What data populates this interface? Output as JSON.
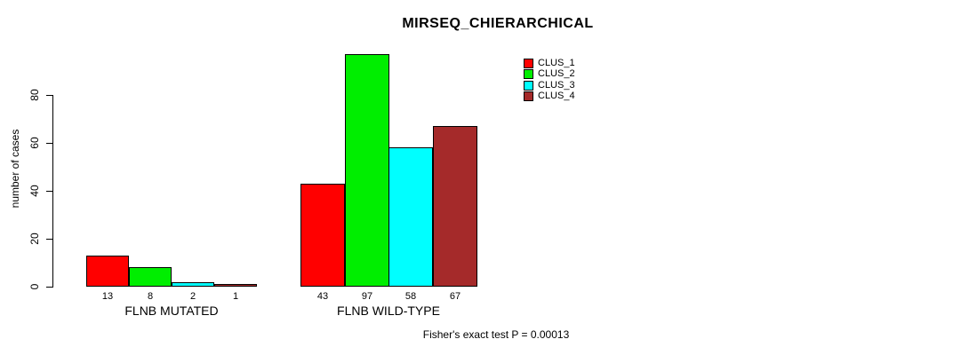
{
  "chart_data": {
    "type": "bar",
    "title": "MIRSEQ_CHIERARCHICAL",
    "xlabel": "",
    "ylabel": "number of cases",
    "yticks": [
      0,
      20,
      40,
      60,
      80
    ],
    "ylim": [
      0,
      100
    ],
    "grid": false,
    "legend_position": "top-right",
    "background_color": "#ffffff",
    "bar_edge_color": "#000000",
    "series": [
      {
        "name": "CLUS_1",
        "color": "#ff0000"
      },
      {
        "name": "CLUS_2",
        "color": "#00ee00"
      },
      {
        "name": "CLUS_3",
        "color": "#00ffff"
      },
      {
        "name": "CLUS_4",
        "color": "#a52a2a"
      }
    ],
    "groups": [
      {
        "label": "FLNB MUTATED",
        "values": [
          13,
          8,
          2,
          1
        ]
      },
      {
        "label": "FLNB WILD-TYPE",
        "values": [
          43,
          97,
          58,
          67
        ]
      }
    ],
    "bar_value_labels": [
      [
        "13",
        "8",
        "2",
        "1"
      ],
      [
        "43",
        "97",
        "58",
        "67"
      ]
    ],
    "annotation": "Fisher's exact test P = 0.00013"
  }
}
